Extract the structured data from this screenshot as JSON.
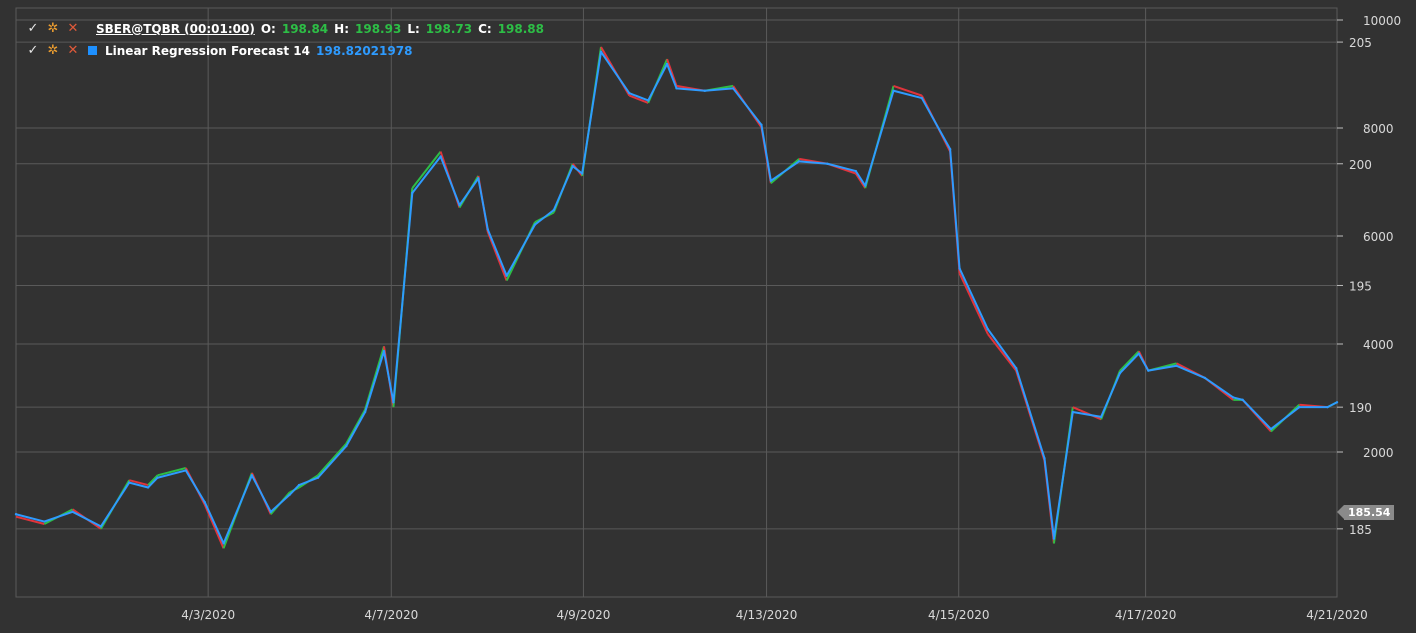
{
  "legend": {
    "row1": {
      "symbol": "SBER@TQBR (00:01:00)",
      "o_label": "O:",
      "o_value": "198.84",
      "h_label": "H:",
      "h_value": "198.93",
      "l_label": "L:",
      "l_value": "198.73",
      "c_label": "C:",
      "c_value": "198.88"
    },
    "row2": {
      "name": "Linear Regression Forecast 14",
      "value": "198.82021978"
    }
  },
  "last_price_tag": "185.54",
  "colors": {
    "background": "#323232",
    "grid": "#5a5a5a",
    "up": "#2dbe46",
    "down": "#e0343c",
    "indicator": "#2e9bff",
    "legend_value_green": "#2dbe46",
    "legend_value_blue": "#2e9bff"
  },
  "chart_data": {
    "type": "line",
    "x_tick_labels": [
      "4/3/2020",
      "4/7/2020",
      "4/9/2020",
      "4/13/2020",
      "4/15/2020",
      "4/17/2020",
      "4/21/2020"
    ],
    "price_axis": {
      "ticks": [
        205,
        200,
        195,
        190,
        185
      ],
      "ylim": [
        182.2,
        206.4
      ]
    },
    "volume_axis": {
      "ticks": [
        10000,
        8000,
        6000,
        4000,
        2000
      ],
      "ylim": [
        0,
        10000
      ]
    },
    "grid": true,
    "series": [
      {
        "name": "SBER@TQBR (00:01:00)",
        "x": [
          0,
          0.3,
          0.6,
          0.9,
          1.2,
          1.4,
          1.5,
          1.8,
          2.0,
          2.2,
          2.5,
          2.7,
          2.9,
          3.0,
          3.2,
          3.5,
          3.7,
          3.9,
          4.0,
          4.2,
          4.5,
          4.7,
          4.9,
          5.0,
          5.2,
          5.5,
          5.7,
          5.9,
          6.0,
          6.2,
          6.5,
          6.7,
          6.9,
          7.0,
          7.3,
          7.6,
          7.9,
          8.0,
          8.3,
          8.6,
          8.9,
          9.0,
          9.3,
          9.6,
          9.9,
          10.0,
          10.3,
          10.6,
          10.9,
          11.0,
          11.2,
          11.5,
          11.7,
          11.9,
          12.0,
          12.3,
          12.6,
          12.9,
          13.0,
          13.3,
          13.6,
          13.9,
          14.0
        ],
        "values": [
          185.5,
          185.2,
          185.8,
          185.0,
          187.0,
          186.8,
          187.2,
          187.5,
          186.0,
          184.2,
          187.3,
          185.6,
          186.5,
          186.7,
          187.2,
          188.5,
          189.9,
          192.5,
          190.0,
          199.0,
          200.5,
          198.2,
          199.5,
          197.2,
          195.2,
          197.6,
          198.0,
          200.0,
          199.5,
          204.8,
          202.8,
          202.5,
          204.3,
          203.2,
          203.0,
          203.2,
          201.5,
          199.2,
          200.2,
          200.0,
          199.6,
          199.0,
          203.2,
          202.8,
          200.5,
          195.5,
          193.0,
          191.5,
          187.8,
          184.4,
          190.0,
          189.5,
          191.5,
          192.3,
          191.5,
          191.8,
          191.2,
          190.3,
          190.3,
          189.0,
          190.1,
          190.0,
          190.2
        ]
      },
      {
        "name": "Linear Regression Forecast 14",
        "x": [
          0,
          0.3,
          0.6,
          0.9,
          1.2,
          1.4,
          1.5,
          1.8,
          2.0,
          2.2,
          2.5,
          2.7,
          2.9,
          3.0,
          3.2,
          3.5,
          3.7,
          3.9,
          4.0,
          4.2,
          4.5,
          4.7,
          4.9,
          5.0,
          5.2,
          5.5,
          5.7,
          5.9,
          6.0,
          6.2,
          6.5,
          6.7,
          6.9,
          7.0,
          7.3,
          7.6,
          7.9,
          8.0,
          8.3,
          8.6,
          8.9,
          9.0,
          9.3,
          9.6,
          9.9,
          10.0,
          10.3,
          10.6,
          10.9,
          11.0,
          11.2,
          11.5,
          11.7,
          11.9,
          12.0,
          12.3,
          12.6,
          12.9,
          13.0,
          13.3,
          13.6,
          13.9,
          14.0
        ],
        "values": [
          185.6,
          185.3,
          185.7,
          185.1,
          186.9,
          186.7,
          187.1,
          187.4,
          186.1,
          184.4,
          187.2,
          185.7,
          186.4,
          186.8,
          187.1,
          188.4,
          189.8,
          192.3,
          190.2,
          198.8,
          200.3,
          198.3,
          199.4,
          197.3,
          195.4,
          197.5,
          198.1,
          199.9,
          199.6,
          204.6,
          202.9,
          202.6,
          204.1,
          203.1,
          203.0,
          203.1,
          201.6,
          199.3,
          200.1,
          200.0,
          199.7,
          199.1,
          203.0,
          202.7,
          200.6,
          195.7,
          193.2,
          191.6,
          187.9,
          184.6,
          189.8,
          189.6,
          191.4,
          192.2,
          191.5,
          191.7,
          191.2,
          190.4,
          190.3,
          189.1,
          190.0,
          190.0,
          190.2
        ]
      }
    ]
  }
}
